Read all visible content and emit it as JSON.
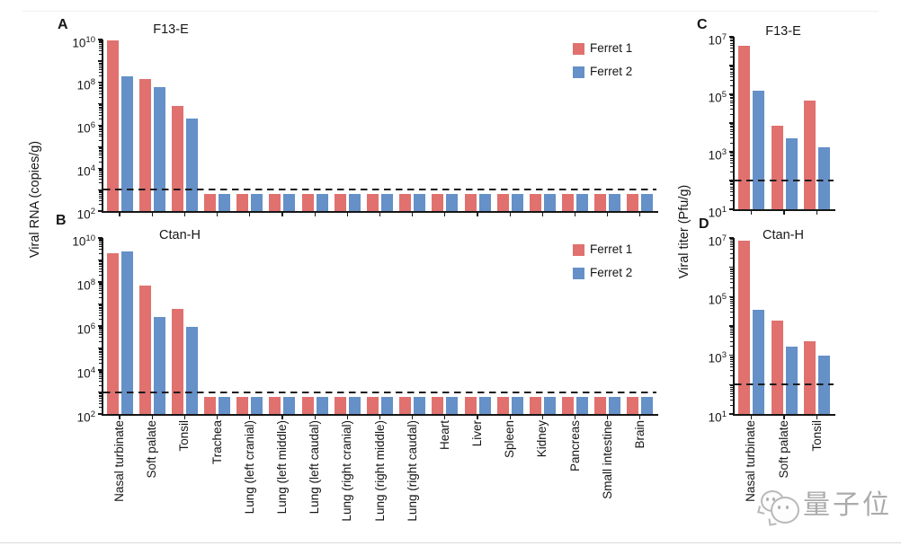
{
  "figure": {
    "ylabel_left": "Viral RNA (copies/g)",
    "ylabel_right": "Viral titer (Pfu/g)",
    "colors": {
      "ferret1": "#e0716f",
      "ferret2": "#6590c8",
      "axis": "#161616"
    }
  },
  "watermark": {
    "text": "量子位",
    "icon": "wechat-chat-bubbles-icon",
    "color": "#ababab"
  },
  "chart_data": [
    {
      "id": "A",
      "panel_label": "A",
      "type": "bar",
      "title": "F13-E",
      "ylabel": "Viral RNA (copies/g)",
      "yscale": "log",
      "ylim": [
        100.0,
        10000000000.0
      ],
      "ytick_exponents": [
        2,
        4,
        6,
        8,
        10
      ],
      "detection_limit_line": 1000.0,
      "legend": true,
      "legend_position": "top-right",
      "categories": [
        "Nasal turbinate",
        "Soft palate",
        "Tonsil",
        "Trachea",
        "Lung (left cranial)",
        "Lung (left middle)",
        "Lung (left caudal)",
        "Lung (right cranial)",
        "Lung (right middle)",
        "Lung (right caudal)",
        "Heart",
        "Liver",
        "Spleen",
        "Kidney",
        "Pancreas",
        "Small intestine",
        "Brain"
      ],
      "series": [
        {
          "name": "Ferret 1",
          "color": "#e0716f",
          "values": [
            9000000000.0,
            150000000.0,
            8000000.0,
            600.0,
            600.0,
            600.0,
            600.0,
            600.0,
            600.0,
            600.0,
            600.0,
            600.0,
            600.0,
            600.0,
            600.0,
            600.0,
            600.0
          ]
        },
        {
          "name": "Ferret 2",
          "color": "#6590c8",
          "values": [
            200000000.0,
            60000000.0,
            2000000.0,
            600.0,
            600.0,
            600.0,
            600.0,
            600.0,
            600.0,
            600.0,
            600.0,
            600.0,
            600.0,
            600.0,
            600.0,
            600.0,
            600.0
          ]
        }
      ]
    },
    {
      "id": "B",
      "panel_label": "B",
      "type": "bar",
      "title": "Ctan-H",
      "ylabel": "Viral RNA (copies/g)",
      "yscale": "log",
      "ylim": [
        100.0,
        10000000000.0
      ],
      "ytick_exponents": [
        2,
        4,
        6,
        8,
        10
      ],
      "detection_limit_line": 1000.0,
      "legend": true,
      "legend_position": "top-right",
      "categories": [
        "Nasal turbinate",
        "Soft palate",
        "Tonsil",
        "Trachea",
        "Lung (left cranial)",
        "Lung (left middle)",
        "Lung (left caudal)",
        "Lung (right cranial)",
        "Lung (right middle)",
        "Lung (right caudal)",
        "Heart",
        "Liver",
        "Spleen",
        "Kidney",
        "Pancreas",
        "Small intestine",
        "Brain"
      ],
      "series": [
        {
          "name": "Ferret 1",
          "color": "#e0716f",
          "values": [
            2000000000.0,
            70000000.0,
            6000000.0,
            600.0,
            600.0,
            600.0,
            600.0,
            600.0,
            600.0,
            600.0,
            600.0,
            600.0,
            600.0,
            600.0,
            600.0,
            600.0,
            600.0
          ]
        },
        {
          "name": "Ferret 2",
          "color": "#6590c8",
          "values": [
            2500000000.0,
            2500000.0,
            900000.0,
            600.0,
            600.0,
            600.0,
            600.0,
            600.0,
            600.0,
            600.0,
            600.0,
            600.0,
            600.0,
            600.0,
            600.0,
            600.0,
            600.0
          ]
        }
      ]
    },
    {
      "id": "C",
      "panel_label": "C",
      "type": "bar",
      "title": "F13-E",
      "ylabel": "Viral titer (Pfu/g)",
      "yscale": "log",
      "ylim": [
        10.0,
        10000000.0
      ],
      "ytick_exponents": [
        1,
        3,
        5,
        7
      ],
      "detection_limit_line": 100.0,
      "legend": false,
      "categories": [
        "Nasal turbinate",
        "Soft palate",
        "Tonsil"
      ],
      "series": [
        {
          "name": "Ferret 1",
          "color": "#e0716f",
          "values": [
            5000000.0,
            8000.0,
            60000.0
          ]
        },
        {
          "name": "Ferret 2",
          "color": "#6590c8",
          "values": [
            130000.0,
            3000.0,
            1400.0
          ]
        }
      ]
    },
    {
      "id": "D",
      "panel_label": "D",
      "type": "bar",
      "title": "Ctan-H",
      "ylabel": "Viral titer (Pfu/g)",
      "yscale": "log",
      "ylim": [
        10.0,
        10000000.0
      ],
      "ytick_exponents": [
        1,
        3,
        5,
        7
      ],
      "detection_limit_line": 100.0,
      "legend": false,
      "categories": [
        "Nasal turbinate",
        "Soft palate",
        "Tonsil"
      ],
      "series": [
        {
          "name": "Ferret 1",
          "color": "#e0716f",
          "values": [
            8000000.0,
            15000.0,
            3000.0
          ]
        },
        {
          "name": "Ferret 2",
          "color": "#6590c8",
          "values": [
            35000.0,
            2000.0,
            1000.0
          ]
        }
      ]
    }
  ]
}
